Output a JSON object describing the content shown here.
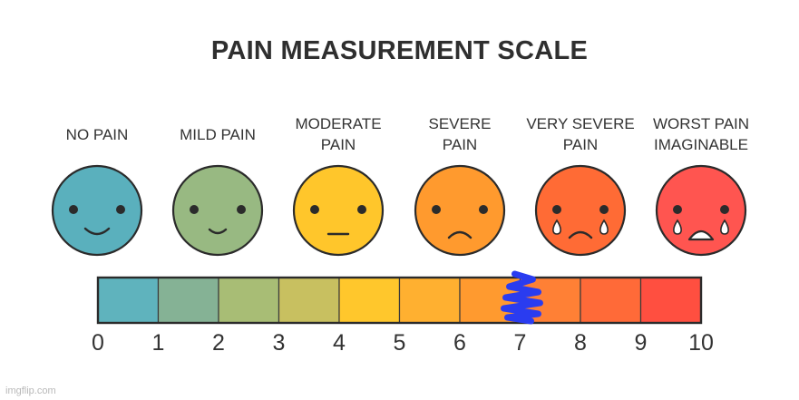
{
  "title": "PAIN MEASUREMENT SCALE",
  "faces": [
    {
      "label_lines": [
        "NO PAIN"
      ],
      "color": "#5ab0bd",
      "mouth": "smile",
      "tears": false
    },
    {
      "label_lines": [
        "MILD PAIN"
      ],
      "color": "#98b982",
      "mouth": "small-smile",
      "tears": false
    },
    {
      "label_lines": [
        "MODERATE",
        "PAIN"
      ],
      "color": "#ffc62b",
      "mouth": "flat",
      "tears": false
    },
    {
      "label_lines": [
        "SEVERE",
        "PAIN"
      ],
      "color": "#ff9a2e",
      "mouth": "frown",
      "tears": false
    },
    {
      "label_lines": [
        "VERY SEVERE",
        "PAIN"
      ],
      "color": "#ff6b35",
      "mouth": "frown",
      "tears": true
    },
    {
      "label_lines": [
        "WORST PAIN",
        "IMAGINABLE"
      ],
      "color": "#ff5550",
      "mouth": "open",
      "tears": true
    }
  ],
  "scale": {
    "ticks": [
      "0",
      "1",
      "2",
      "3",
      "4",
      "5",
      "6",
      "7",
      "8",
      "9",
      "10"
    ],
    "segment_colors": [
      "#5fb3bd",
      "#85b295",
      "#a8bd75",
      "#c8c060",
      "#ffc72c",
      "#ffb030",
      "#ff9a2f",
      "#ff8035",
      "#ff6a38",
      "#ff4f40"
    ],
    "marker_value": 7,
    "marker_color": "#2a3cf0"
  },
  "watermark": "imgflip.com"
}
